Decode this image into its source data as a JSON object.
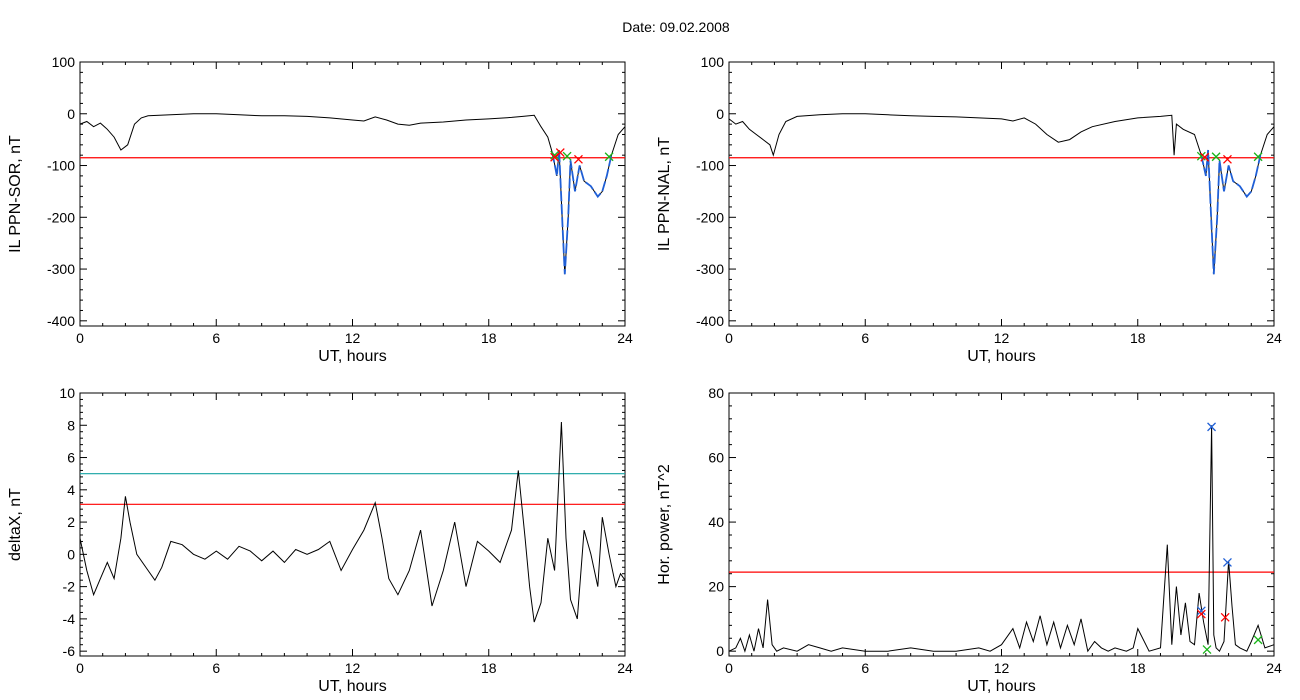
{
  "figure": {
    "date_label": "Date:  09.02.2008"
  },
  "colors": {
    "data": "#000000",
    "threshold_red": "#ff0000",
    "threshold_teal": "#14a3a3",
    "highlight_blue": "#1f5fd6",
    "marker_red": "#ff0000",
    "marker_green": "#19b419",
    "marker_blue": "#1f5fd6"
  },
  "chart_data": [
    {
      "type": "line",
      "ylabel": "IL PPN-SOR, nT",
      "xlabel": "UT, hours",
      "xlim": [
        0,
        24
      ],
      "ylim": [
        -410,
        100
      ],
      "xticks": [
        0,
        6,
        12,
        18,
        24
      ],
      "yticks": [
        100,
        0,
        -100,
        -200,
        -300,
        -400
      ],
      "grid": false,
      "thresholds": [
        {
          "value": -85,
          "color": "red"
        }
      ],
      "series": [
        {
          "x": [
            0,
            0.3,
            0.6,
            0.9,
            1.2,
            1.5,
            1.8,
            2.1,
            2.4,
            2.7,
            3.0,
            4,
            5,
            6,
            7,
            8,
            9,
            10,
            11,
            12,
            12.5,
            13,
            13.5,
            14,
            14.5,
            15,
            16,
            17,
            18,
            19,
            19.5,
            20,
            20.3,
            20.6,
            20.8,
            21.0,
            21.1,
            21.25,
            21.35,
            21.5,
            21.6,
            21.8,
            22.0,
            22.2,
            22.5,
            22.8,
            23.0,
            23.2,
            23.4,
            23.7,
            24
          ],
          "y": [
            -20,
            -15,
            -25,
            -18,
            -30,
            -45,
            -70,
            -60,
            -20,
            -8,
            -4,
            -2,
            0,
            0,
            -2,
            -4,
            -4,
            -5,
            -8,
            -12,
            -14,
            -6,
            -12,
            -20,
            -22,
            -18,
            -16,
            -12,
            -10,
            -7,
            -5,
            -3,
            -25,
            -45,
            -75,
            -120,
            -70,
            -220,
            -310,
            -200,
            -90,
            -150,
            -100,
            -130,
            -140,
            -160,
            -150,
            -120,
            -80,
            -40,
            -25
          ]
        }
      ],
      "highlight_range": [
        20.8,
        23.4
      ],
      "markers": [
        {
          "x": 20.9,
          "y": -80,
          "color": "green"
        },
        {
          "x": 20.9,
          "y": -84,
          "color": "red"
        },
        {
          "x": 21.15,
          "y": -75,
          "color": "red"
        },
        {
          "x": 21.45,
          "y": -82,
          "color": "green"
        },
        {
          "x": 21.95,
          "y": -88,
          "color": "red"
        },
        {
          "x": 23.3,
          "y": -83,
          "color": "green"
        }
      ]
    },
    {
      "type": "line",
      "ylabel": "IL PPN-NAL, nT",
      "xlabel": "UT, hours",
      "xlim": [
        0,
        24
      ],
      "ylim": [
        -410,
        100
      ],
      "xticks": [
        0,
        6,
        12,
        18,
        24
      ],
      "yticks": [
        100,
        0,
        -100,
        -200,
        -300,
        -400
      ],
      "grid": false,
      "thresholds": [
        {
          "value": -85,
          "color": "red"
        }
      ],
      "series": [
        {
          "x": [
            0,
            0.3,
            0.6,
            0.9,
            1.2,
            1.5,
            1.8,
            1.95,
            2.2,
            2.5,
            3.0,
            4,
            5,
            6,
            7,
            8,
            9,
            10,
            11,
            12,
            12.5,
            13,
            13.5,
            14,
            14.5,
            15,
            15.5,
            16,
            17,
            18,
            19,
            19.5,
            19.6,
            19.7,
            20,
            20.5,
            20.8,
            21.0,
            21.1,
            21.25,
            21.35,
            21.5,
            21.6,
            21.8,
            22.0,
            22.2,
            22.5,
            22.8,
            23.0,
            23.2,
            23.4,
            23.7,
            24
          ],
          "y": [
            -10,
            -20,
            -15,
            -30,
            -40,
            -50,
            -60,
            -80,
            -40,
            -15,
            -5,
            -2,
            0,
            0,
            -2,
            -4,
            -5,
            -6,
            -8,
            -10,
            -14,
            -8,
            -20,
            -40,
            -55,
            -50,
            -35,
            -25,
            -15,
            -8,
            -5,
            -3,
            -80,
            -20,
            -30,
            -40,
            -80,
            -120,
            -70,
            -220,
            -310,
            -200,
            -90,
            -150,
            -100,
            -130,
            -140,
            -160,
            -150,
            -120,
            -80,
            -40,
            -25
          ]
        }
      ],
      "highlight_range": [
        20.8,
        23.4
      ],
      "markers": [
        {
          "x": 20.8,
          "y": -82,
          "color": "green"
        },
        {
          "x": 20.95,
          "y": -84,
          "color": "red"
        },
        {
          "x": 21.45,
          "y": -83,
          "color": "green"
        },
        {
          "x": 21.95,
          "y": -88,
          "color": "red"
        },
        {
          "x": 23.3,
          "y": -83,
          "color": "green"
        }
      ]
    },
    {
      "type": "line",
      "ylabel": "deltaX, nT",
      "xlabel": "UT, hours",
      "xlim": [
        0,
        24
      ],
      "ylim": [
        -6.3,
        10
      ],
      "xticks": [
        0,
        6,
        12,
        18,
        24
      ],
      "yticks": [
        10,
        8,
        6,
        4,
        2,
        0,
        -2,
        -4,
        -6
      ],
      "grid": false,
      "thresholds": [
        {
          "value": 5.0,
          "color": "teal"
        },
        {
          "value": 3.1,
          "color": "red"
        }
      ],
      "series": [
        {
          "x": [
            0,
            0.3,
            0.6,
            0.9,
            1.2,
            1.5,
            1.8,
            2.0,
            2.2,
            2.5,
            3.0,
            3.3,
            3.6,
            4.0,
            4.5,
            5.0,
            5.5,
            6.0,
            6.5,
            7.0,
            7.5,
            8.0,
            8.5,
            9.0,
            9.5,
            10.0,
            10.5,
            11.0,
            11.5,
            12.0,
            12.5,
            13.0,
            13.3,
            13.6,
            14.0,
            14.5,
            15.0,
            15.5,
            16.0,
            16.5,
            17.0,
            17.5,
            18.0,
            18.5,
            19.0,
            19.3,
            19.6,
            19.8,
            20.0,
            20.3,
            20.6,
            20.9,
            21.2,
            21.4,
            21.6,
            21.9,
            22.2,
            22.5,
            22.8,
            23.0,
            23.3,
            23.6,
            23.8,
            24.0
          ],
          "y": [
            1,
            -1,
            -2.5,
            -1.5,
            -0.5,
            -1.5,
            1,
            3.6,
            2,
            0,
            -1,
            -1.6,
            -0.8,
            0.8,
            0.6,
            0,
            -0.3,
            0.2,
            -0.3,
            0.5,
            0.2,
            -0.4,
            0.2,
            -0.5,
            0.3,
            0,
            0.3,
            0.8,
            -1,
            0.3,
            1.5,
            3.2,
            1,
            -1.5,
            -2.5,
            -1,
            1.5,
            -3.2,
            -1,
            2,
            -2,
            0.8,
            0.2,
            -0.5,
            1.5,
            5.2,
            1,
            -2,
            -4.2,
            -3,
            1,
            -1,
            8.2,
            1,
            -2.8,
            -4,
            1.5,
            0,
            -2,
            2.3,
            0,
            -2,
            -1.2,
            -1.6
          ]
        }
      ]
    },
    {
      "type": "line",
      "ylabel": "Hor. power, nT^2",
      "xlabel": "UT, hours",
      "xlim": [
        0,
        24
      ],
      "ylim": [
        -1.5,
        80
      ],
      "xticks": [
        0,
        6,
        12,
        18,
        24
      ],
      "yticks": [
        80,
        60,
        40,
        20,
        0
      ],
      "grid": false,
      "thresholds": [
        {
          "value": 24.5,
          "color": "red"
        }
      ],
      "series": [
        {
          "x": [
            0,
            0.3,
            0.5,
            0.7,
            0.9,
            1.1,
            1.3,
            1.5,
            1.7,
            1.9,
            2.1,
            2.4,
            3.0,
            3.5,
            4.0,
            4.5,
            5.0,
            6.0,
            7.0,
            8.0,
            9.0,
            10.0,
            11.0,
            11.5,
            12.0,
            12.5,
            12.8,
            13.1,
            13.4,
            13.7,
            14.0,
            14.3,
            14.6,
            14.9,
            15.2,
            15.5,
            15.8,
            16.1,
            16.4,
            16.7,
            17.0,
            17.5,
            17.8,
            18.0,
            18.5,
            19.0,
            19.3,
            19.5,
            19.7,
            19.9,
            20.1,
            20.3,
            20.5,
            20.7,
            20.9,
            21.1,
            21.25,
            21.35,
            21.45,
            21.6,
            21.8,
            22.0,
            22.15,
            22.3,
            22.5,
            22.8,
            23.0,
            23.3,
            23.6,
            24.0
          ],
          "y": [
            0,
            1,
            4,
            0,
            5,
            0,
            7,
            1,
            16,
            2,
            0,
            1,
            0,
            2,
            1,
            0,
            1,
            0,
            0,
            1,
            0,
            0,
            1,
            0,
            2,
            7,
            1,
            9,
            3,
            11,
            2,
            9,
            1,
            8,
            2,
            10,
            0,
            3,
            1,
            0,
            1,
            0,
            1,
            7,
            0,
            1,
            33,
            2,
            20,
            5,
            15,
            3,
            2,
            18,
            9,
            2,
            70,
            5,
            1,
            0,
            3,
            28,
            14,
            2,
            1,
            0,
            3,
            8,
            1,
            2
          ]
        }
      ],
      "markers": [
        {
          "x": 20.8,
          "y": 12.5,
          "color": "blue"
        },
        {
          "x": 20.8,
          "y": 11.5,
          "color": "red"
        },
        {
          "x": 21.05,
          "y": 0.5,
          "color": "green"
        },
        {
          "x": 21.25,
          "y": 69.5,
          "color": "blue"
        },
        {
          "x": 21.85,
          "y": 10.5,
          "color": "red"
        },
        {
          "x": 21.95,
          "y": 27.5,
          "color": "blue"
        },
        {
          "x": 23.3,
          "y": 3.5,
          "color": "green"
        }
      ]
    }
  ]
}
